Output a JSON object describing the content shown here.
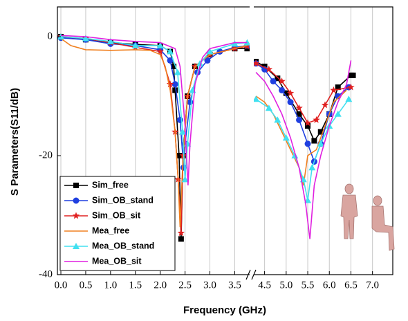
{
  "chart_data": {
    "type": "line",
    "xlabel": "Frequency (GHz)",
    "ylabel": "S Parameters(S11/dB)",
    "ylim": [
      -40,
      5
    ],
    "yticks": [
      0,
      -20,
      -40
    ],
    "grid": "x",
    "legend": "lower left",
    "x_segments": [
      {
        "xlim": [
          -0.07,
          3.8
        ],
        "xticks": [
          {
            "value": 0,
            "label": "0.0"
          },
          0.5,
          {
            "value": 1,
            "label": "1.0"
          },
          1.5,
          {
            "value": 2,
            "label": "2.0"
          },
          2.5,
          {
            "value": 3,
            "label": "3.0"
          },
          3.5
        ]
      },
      {
        "xlim": [
          4.25,
          7.47
        ],
        "xticks": [
          4.5,
          {
            "value": 5,
            "label": "5.0"
          },
          5.5,
          {
            "value": 6,
            "label": "6.0"
          },
          6.5,
          {
            "value": 7,
            "label": "7.0"
          }
        ]
      }
    ],
    "series": [
      {
        "name": "Sim_free",
        "color": "#000000",
        "marker": "square",
        "x": [
          0,
          0.5,
          1.0,
          1.5,
          2.0,
          2.2,
          2.27,
          2.3,
          2.38,
          2.42,
          2.46,
          2.55,
          2.7,
          3.0,
          3.5,
          3.75,
          null,
          4.3,
          4.5,
          4.8,
          5.0,
          5.3,
          5.5,
          5.65,
          5.8,
          6.0,
          6.2,
          6.5,
          6.55
        ],
        "values": [
          0,
          -0.5,
          -1,
          -1.3,
          -1.5,
          -2.5,
          -5,
          -9,
          -20,
          -34,
          -20,
          -10,
          -5,
          -3,
          -2,
          -2,
          null,
          -4.2,
          -5,
          -7,
          -9.5,
          -13,
          -15,
          -17.5,
          -16,
          -13,
          -8.5,
          -6.5,
          -6.5
        ]
      },
      {
        "name": "Sim_OB_stand",
        "color": "#1f3fe0",
        "marker": "circle",
        "x": [
          0,
          0.5,
          1.0,
          1.5,
          2.0,
          2.2,
          2.3,
          2.4,
          2.47,
          2.5,
          2.6,
          2.75,
          2.95,
          3.2,
          3.5,
          3.75,
          null,
          4.3,
          4.5,
          4.7,
          4.9,
          5.1,
          5.3,
          5.5,
          5.65,
          5.8,
          6.0,
          6.2,
          6.45
        ],
        "values": [
          -0.2,
          -0.5,
          -1.2,
          -1.5,
          -2.2,
          -4,
          -8,
          -14,
          -22,
          -18,
          -11,
          -6,
          -4,
          -2.5,
          -1.8,
          -1.5,
          null,
          -4.5,
          -5.5,
          -7.5,
          -9,
          -11,
          -14,
          -18,
          -21,
          -18,
          -13,
          -10,
          -8.5
        ]
      },
      {
        "name": "Sim_OB_sit",
        "color": "#e02020",
        "marker": "star",
        "x": [
          0,
          0.5,
          1.0,
          1.5,
          2.0,
          2.2,
          2.3,
          2.36,
          2.42,
          2.46,
          2.55,
          2.7,
          3.0,
          3.5,
          3.75,
          null,
          4.3,
          4.6,
          4.9,
          5.1,
          5.3,
          5.5,
          5.7,
          5.9,
          6.1,
          6.5
        ],
        "values": [
          0,
          -0.3,
          -1,
          -1.8,
          -2.5,
          -8,
          -16,
          -24,
          -33,
          -20,
          -10,
          -5,
          -3,
          -2,
          -1.6,
          null,
          -4.5,
          -5.5,
          -7.5,
          -9.5,
          -12,
          -14.5,
          -14,
          -11.5,
          -9,
          -8.5
        ]
      },
      {
        "name": "Mea_free",
        "color": "#f08020",
        "marker": "none",
        "x": [
          0,
          0.2,
          0.5,
          1.0,
          1.5,
          1.8,
          2.0,
          2.1,
          2.2,
          2.3,
          2.36,
          2.4,
          2.45,
          2.55,
          2.7,
          3.0,
          3.5,
          3.75,
          null,
          4.3,
          4.5,
          4.7,
          4.9,
          5.1,
          5.3,
          5.4,
          5.5,
          5.7,
          5.9,
          6.1,
          6.4
        ],
        "values": [
          -0.3,
          -1.5,
          -2.2,
          -2.3,
          -2.2,
          -2.3,
          -3,
          -5,
          -9,
          -16,
          -24,
          -32,
          -22,
          -10,
          -5,
          -3,
          -2,
          -1.5,
          null,
          -10,
          -11,
          -13,
          -16,
          -19,
          -22,
          -25,
          -20,
          -19,
          -15,
          -11,
          -9
        ]
      },
      {
        "name": "Mea_OB_stand",
        "color": "#40e0f0",
        "marker": "triangle",
        "x": [
          0,
          0.5,
          1.0,
          1.5,
          2.0,
          2.2,
          2.35,
          2.45,
          2.5,
          2.55,
          2.65,
          2.8,
          3.0,
          3.5,
          3.75,
          null,
          4.3,
          4.6,
          4.8,
          5.0,
          5.2,
          5.4,
          5.5,
          5.6,
          5.8,
          6.0,
          6.2,
          6.45
        ],
        "values": [
          0,
          -0.3,
          -0.8,
          -1.5,
          -1.5,
          -2.5,
          -6,
          -16,
          -24,
          -18,
          -9,
          -4.5,
          -2.5,
          -1.2,
          -1,
          null,
          -10.5,
          -12,
          -14,
          -17,
          -20,
          -24,
          -27.5,
          -22,
          -18,
          -15,
          -13,
          -10.5
        ]
      },
      {
        "name": "Mea_OB_sit",
        "color": "#e020e0",
        "marker": "none",
        "x": [
          0,
          0.5,
          1.0,
          1.5,
          2.0,
          2.3,
          2.4,
          2.5,
          2.56,
          2.6,
          2.7,
          2.85,
          3.0,
          3.5,
          3.75,
          null,
          4.3,
          4.5,
          4.7,
          4.9,
          5.1,
          5.3,
          5.45,
          5.55,
          5.65,
          5.8,
          6.0,
          6.2,
          6.4,
          6.5
        ],
        "values": [
          0.2,
          0,
          -0.5,
          -0.8,
          -1,
          -2,
          -5,
          -15,
          -25,
          -18,
          -8,
          -3.5,
          -2,
          -1,
          -1,
          null,
          -6,
          -7.5,
          -10,
          -13,
          -17,
          -22,
          -28,
          -34,
          -25,
          -20,
          -15,
          -11,
          -8,
          -4
        ]
      }
    ]
  }
}
